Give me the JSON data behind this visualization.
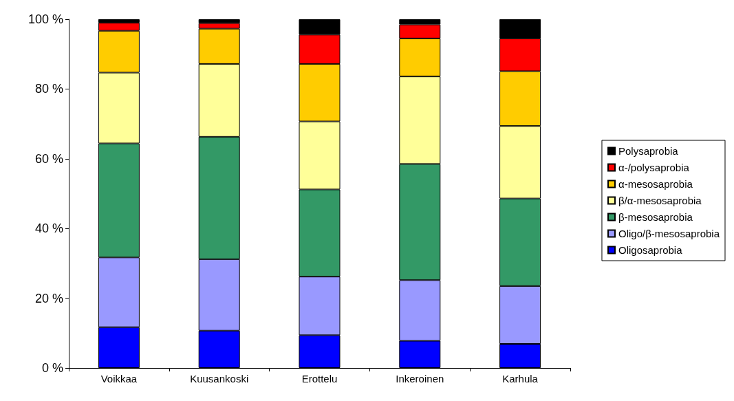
{
  "chart_data": {
    "type": "bar",
    "stacked": true,
    "categories": [
      "Voikkaa",
      "Kuusankoski",
      "Erottelu",
      "Inkeroinen",
      "Karhula"
    ],
    "ylim": [
      0,
      100
    ],
    "yticks": [
      {
        "value": 0,
        "label": "0 %"
      },
      {
        "value": 20,
        "label": "20 %"
      },
      {
        "value": 40,
        "label": "40 %"
      },
      {
        "value": 60,
        "label": "60 %"
      },
      {
        "value": 80,
        "label": "80 %"
      },
      {
        "value": 100,
        "label": "100 %"
      }
    ],
    "grid": false,
    "legend": "right",
    "series": [
      {
        "name": "Oligosaprobia",
        "color": "#0000ff",
        "values": [
          11.7,
          10.7,
          9.4,
          7.8,
          6.9
        ]
      },
      {
        "name": "Oligo/β-mesosaprobia",
        "color": "#9999ff",
        "values": [
          20.0,
          20.5,
          16.8,
          17.4,
          16.6
        ]
      },
      {
        "name": "β-mesosaprobia",
        "color": "#339966",
        "values": [
          32.7,
          35.1,
          25.0,
          33.3,
          25.1
        ]
      },
      {
        "name": "β/α-mesosaprobia",
        "color": "#ffff99",
        "values": [
          20.3,
          20.9,
          19.5,
          25.1,
          20.8
        ]
      },
      {
        "name": "α-mesosaprobia",
        "color": "#ffcc00",
        "values": [
          12.0,
          10.1,
          16.5,
          10.9,
          15.7
        ]
      },
      {
        "name": "α-/polysaprobia",
        "color": "#ff0000",
        "values": [
          2.3,
          1.6,
          8.4,
          4.0,
          9.4
        ]
      },
      {
        "name": "Polysaprobia",
        "color": "#000000",
        "values": [
          1.0,
          1.1,
          4.4,
          1.5,
          5.5
        ]
      }
    ]
  }
}
